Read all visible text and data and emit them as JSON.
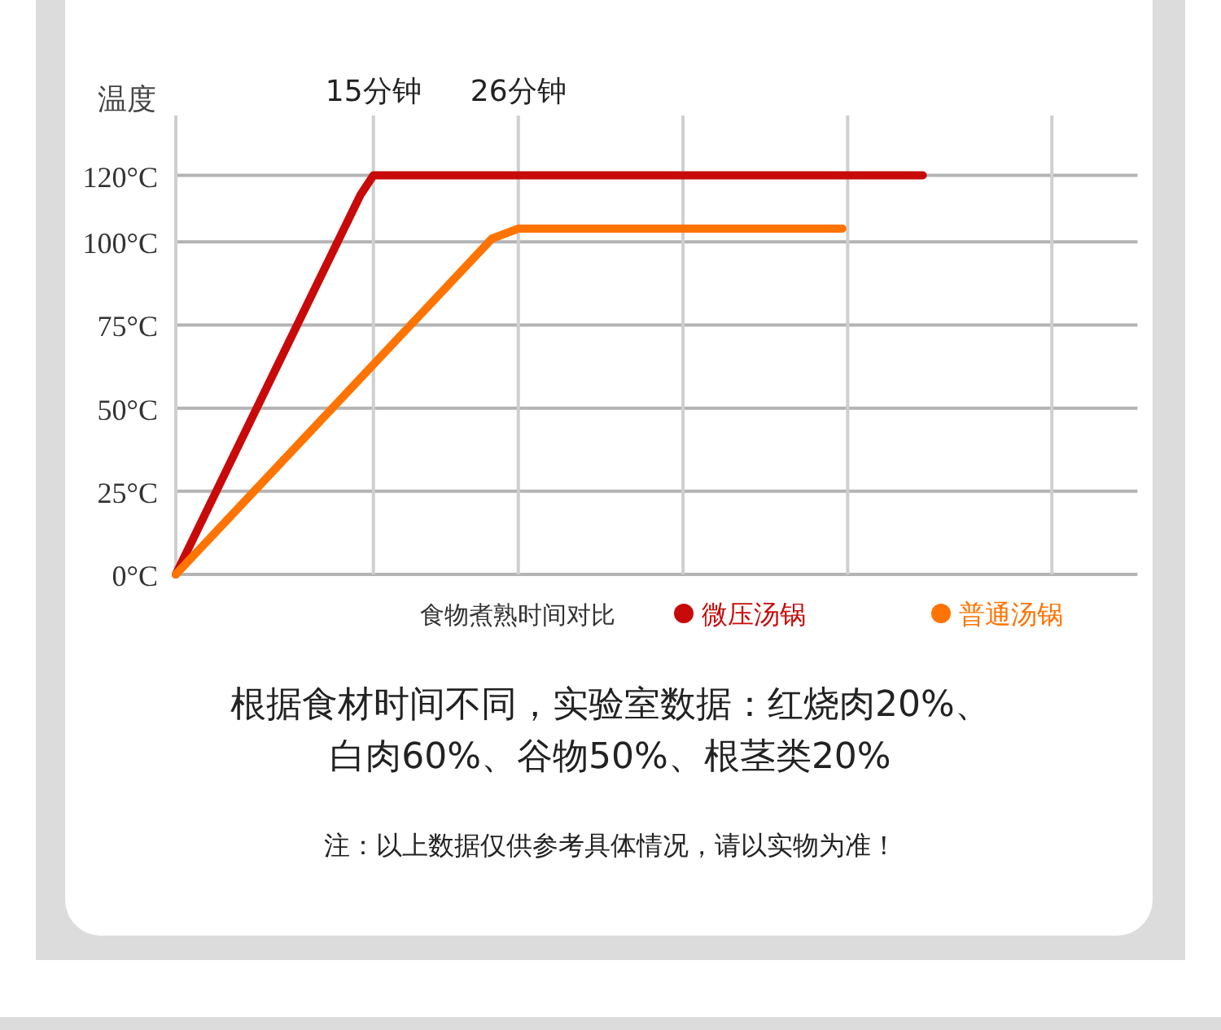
{
  "chart_data": {
    "type": "line",
    "ylabel": "温度",
    "legend_title": "食物煮熟时间对比",
    "xlim": [
      0,
      73
    ],
    "xticks": [
      {
        "value": 0,
        "label": null
      },
      {
        "value": 15,
        "label": "15分钟"
      },
      {
        "value": 26,
        "label": "26分钟"
      },
      {
        "value": 38.5,
        "label": null
      },
      {
        "value": 51,
        "label": null
      },
      {
        "value": 66.5,
        "label": null
      }
    ],
    "ylim": [
      0,
      138
    ],
    "yticks": [
      {
        "value": 0,
        "label": "0°C"
      },
      {
        "value": 25,
        "label": "25°C"
      },
      {
        "value": 50,
        "label": "50°C"
      },
      {
        "value": 75,
        "label": "75°C"
      },
      {
        "value": 100,
        "label": "100°C"
      },
      {
        "value": 120,
        "label": "120°C"
      }
    ],
    "series": [
      {
        "name": "微压汤锅",
        "color": "#c80a0a",
        "x": [
          0,
          14,
          15,
          56.7
        ],
        "values": [
          0,
          114,
          120,
          120
        ]
      },
      {
        "name": "普通汤锅",
        "color": "#ff7300",
        "x": [
          0,
          24,
          26,
          50.6
        ],
        "values": [
          0,
          101,
          104,
          104
        ]
      }
    ],
    "grid": true,
    "legend": "bottom right",
    "line_style": "solid",
    "annotations": [
      "根据食材时间不同，实验室数据：红烧肉20%、",
      "白肉60%、谷物50%、根茎类20%",
      "注：以上数据仅供参考具体情况，请以实物为准！"
    ]
  }
}
